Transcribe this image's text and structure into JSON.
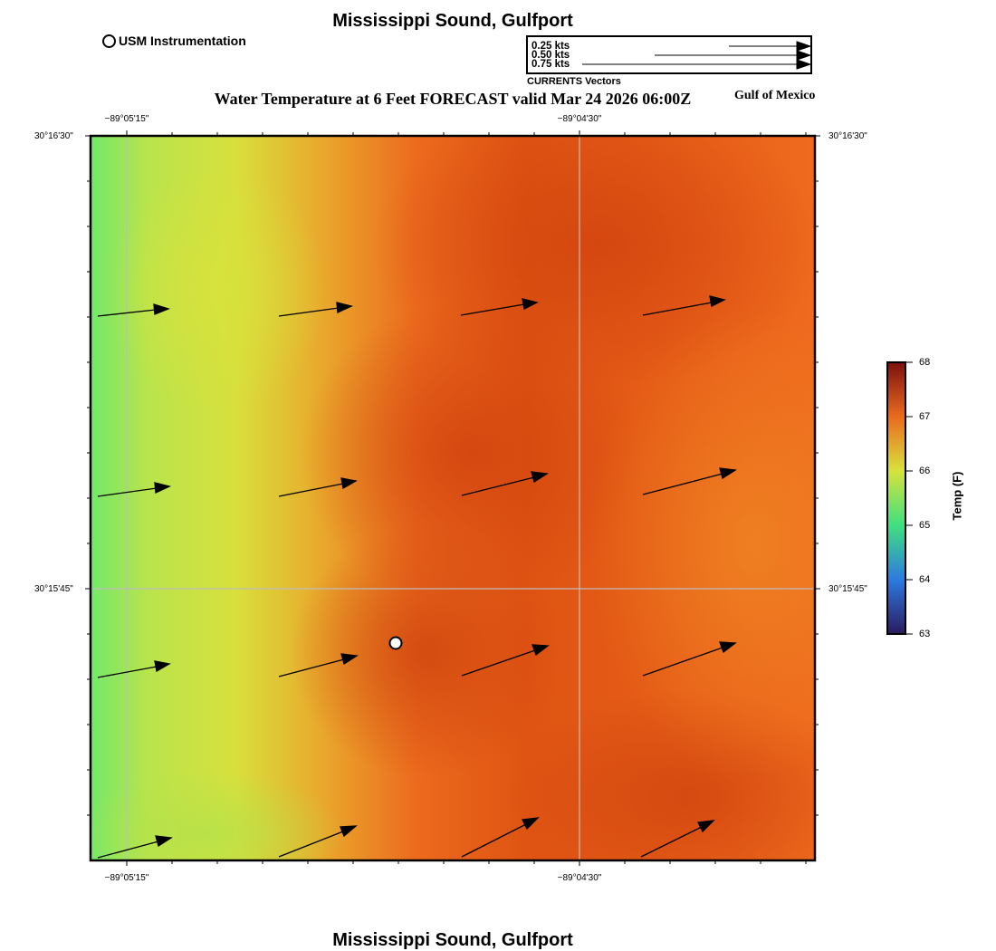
{
  "header": {
    "station_title": "Mississippi Sound, Gulfport",
    "legend_usm": "USM Instrumentation",
    "main_title": "Water Temperature at 6 Feet FORECAST valid Mar 24 2026 06:00Z",
    "region_label": "Gulf of Mexico",
    "currents_label": "CURRENTS Vectors"
  },
  "scale": {
    "labels": [
      "0.25 kts",
      "0.50 kts",
      "0.75 kts"
    ]
  },
  "axes": {
    "lon_labels": [
      "−89°05'15\"",
      "−89°04'30\""
    ],
    "lat_labels": [
      "30°16'30\"",
      "30°15'45\""
    ]
  },
  "colorbar": {
    "title": "Temp (F)",
    "ticks": [
      "68",
      "67",
      "66",
      "65",
      "64",
      "63"
    ]
  },
  "footer": {
    "station_title": "Mississippi Sound, Gulfport"
  },
  "colors": {
    "green": "#6fe86a",
    "yellow": "#d8e23c",
    "orange": "#ef6a1e",
    "dark_orange": "#d84a10",
    "grid": "#bbbbbb"
  }
}
